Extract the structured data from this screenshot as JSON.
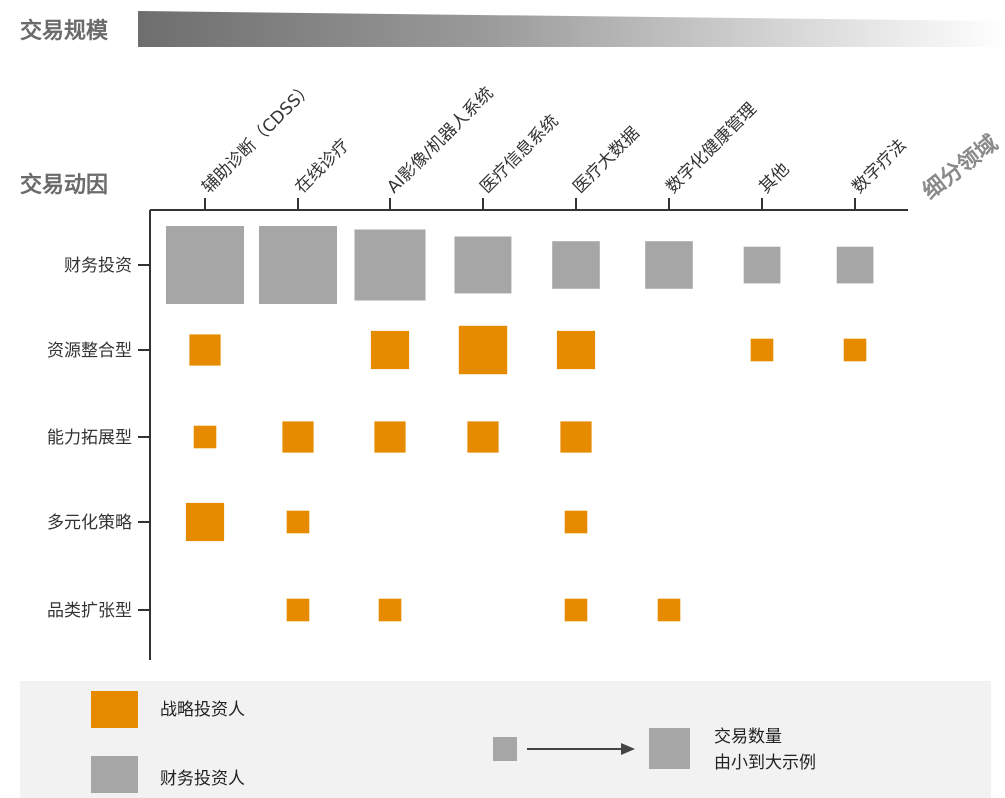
{
  "section_title": "交易规模",
  "chart_data": {
    "type": "bubble-matrix",
    "x_axis_title": "细分领域",
    "y_axis_title": "交易动因",
    "x_categories": [
      "辅助诊断（CDSS）",
      "在线诊疗",
      "AI影像/机器人系统",
      "医疗信息系统",
      "医疗大数据",
      "数字化健康管理",
      "其他",
      "数字疗法"
    ],
    "y_categories": [
      "财务投资",
      "资源整合型",
      "能力拓展型",
      "多元化策略",
      "品类扩张型"
    ],
    "series": [
      {
        "name": "战略投资人",
        "color": "#e68a00"
      },
      {
        "name": "财务投资人",
        "color": "#a6a6a6"
      }
    ],
    "cells": [
      {
        "x": 0,
        "y": 0,
        "series": 1,
        "relative_size": 1.0
      },
      {
        "x": 1,
        "y": 0,
        "series": 1,
        "relative_size": 1.0
      },
      {
        "x": 2,
        "y": 0,
        "series": 1,
        "relative_size": 0.91
      },
      {
        "x": 3,
        "y": 0,
        "series": 1,
        "relative_size": 0.73
      },
      {
        "x": 4,
        "y": 0,
        "series": 1,
        "relative_size": 0.61
      },
      {
        "x": 5,
        "y": 0,
        "series": 1,
        "relative_size": 0.61
      },
      {
        "x": 6,
        "y": 0,
        "series": 1,
        "relative_size": 0.47
      },
      {
        "x": 7,
        "y": 0,
        "series": 1,
        "relative_size": 0.47
      },
      {
        "x": 0,
        "y": 1,
        "series": 0,
        "relative_size": 0.4
      },
      {
        "x": 2,
        "y": 1,
        "series": 0,
        "relative_size": 0.49
      },
      {
        "x": 3,
        "y": 1,
        "series": 0,
        "relative_size": 0.62
      },
      {
        "x": 4,
        "y": 1,
        "series": 0,
        "relative_size": 0.49
      },
      {
        "x": 6,
        "y": 1,
        "series": 0,
        "relative_size": 0.29
      },
      {
        "x": 7,
        "y": 1,
        "series": 0,
        "relative_size": 0.29
      },
      {
        "x": 0,
        "y": 2,
        "series": 0,
        "relative_size": 0.29
      },
      {
        "x": 1,
        "y": 2,
        "series": 0,
        "relative_size": 0.4
      },
      {
        "x": 2,
        "y": 2,
        "series": 0,
        "relative_size": 0.4
      },
      {
        "x": 3,
        "y": 2,
        "series": 0,
        "relative_size": 0.4
      },
      {
        "x": 4,
        "y": 2,
        "series": 0,
        "relative_size": 0.4
      },
      {
        "x": 0,
        "y": 3,
        "series": 0,
        "relative_size": 0.49
      },
      {
        "x": 1,
        "y": 3,
        "series": 0,
        "relative_size": 0.29
      },
      {
        "x": 4,
        "y": 3,
        "series": 0,
        "relative_size": 0.29
      },
      {
        "x": 1,
        "y": 4,
        "series": 0,
        "relative_size": 0.29
      },
      {
        "x": 2,
        "y": 4,
        "series": 0,
        "relative_size": 0.29
      },
      {
        "x": 4,
        "y": 4,
        "series": 0,
        "relative_size": 0.29
      },
      {
        "x": 5,
        "y": 4,
        "series": 0,
        "relative_size": 0.29
      }
    ]
  },
  "legend": {
    "strategic_label": "战略投资人",
    "financial_label": "财务投资人",
    "size_note_line1": "交易数量",
    "size_note_line2": "由小到大示例"
  }
}
